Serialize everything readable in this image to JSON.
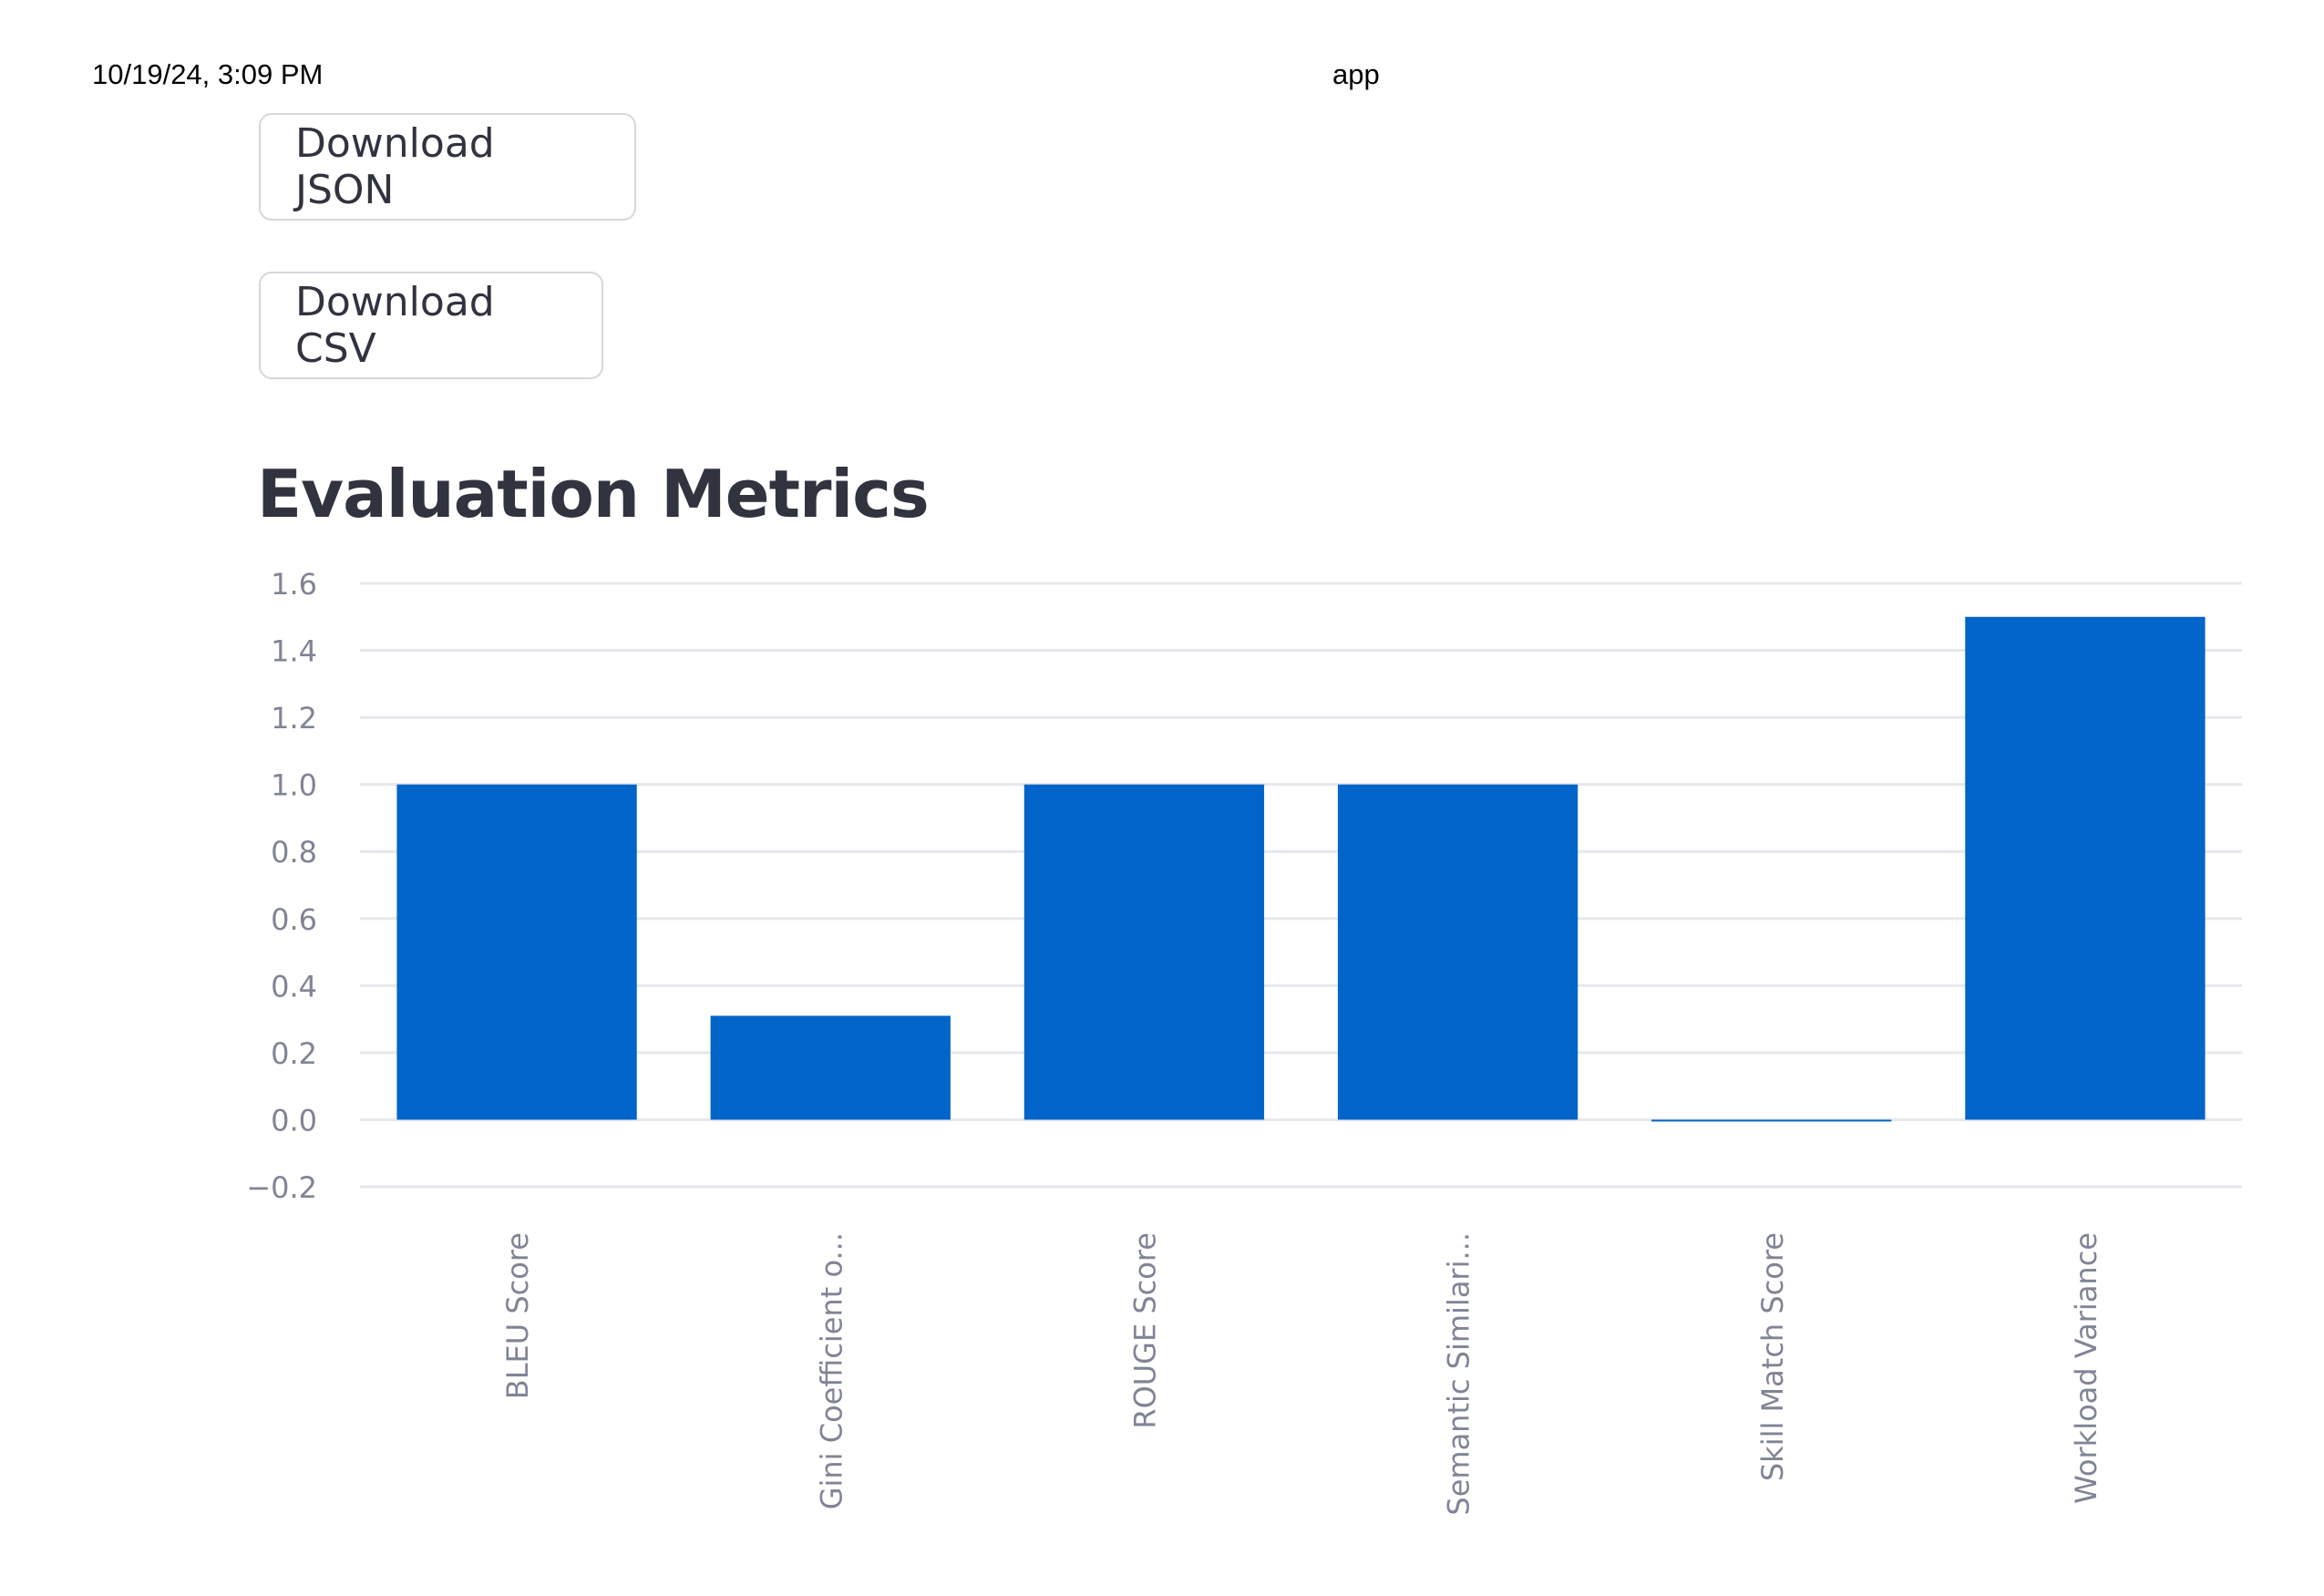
{
  "header": {
    "datetime": "10/19/24, 3:09 PM",
    "app_name": "app"
  },
  "buttons": {
    "download_json": "Download JSON",
    "download_csv": "Download CSV"
  },
  "section_title": "Evaluation Metrics",
  "chart_data": {
    "type": "bar",
    "categories": [
      "BLEU Score",
      "Gini Coefficient o...",
      "ROUGE Score",
      "Semantic Similari...",
      "Skill Match Score",
      "Workload Variance"
    ],
    "values": [
      1.0,
      0.31,
      1.0,
      1.0,
      0.0,
      1.5
    ],
    "ylim": [
      -0.2,
      1.6
    ],
    "yticks": [
      -0.2,
      0.0,
      0.2,
      0.4,
      0.6,
      0.8,
      1.0,
      1.2,
      1.4,
      1.6
    ],
    "ytick_labels": [
      "−0.2",
      "0.0",
      "0.2",
      "0.4",
      "0.6",
      "0.8",
      "1.0",
      "1.2",
      "1.4",
      "1.6"
    ],
    "grid": true,
    "bar_color": "#0064c8",
    "grid_color": "#e6e8ec",
    "tick_color": "#808495",
    "title": "",
    "xlabel": "",
    "ylabel": ""
  }
}
